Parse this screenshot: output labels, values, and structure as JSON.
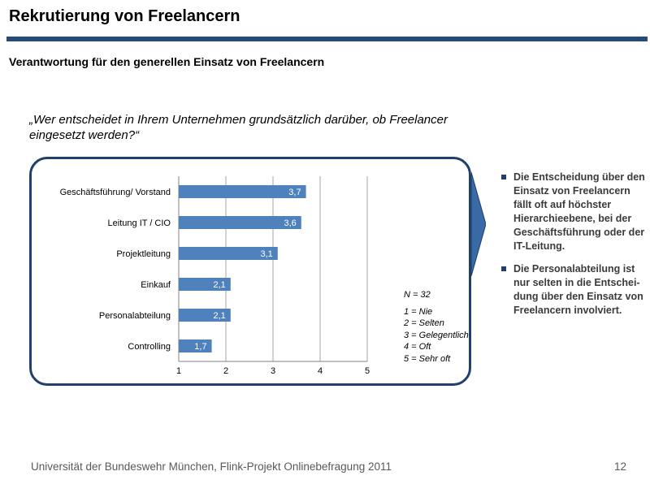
{
  "slide": {
    "title": "Rekrutierung von Freelancern",
    "subtitle": "Verantwortung für den generellen Einsatz von Freelancern",
    "question_line1": "„Wer entscheidet in Ihrem Unternehmen grundsätzlich darüber, ob Freelancer",
    "question_line2": "eingesetzt werden?“",
    "footer": "Universität der Bundeswehr München, Flink-Projekt Onlinebefragung  2011",
    "page_number": "12"
  },
  "bullets": [
    "Die Entscheidung über den Einsatz von Freelancern fällt oft auf höchster Hierarchieebene, bei der Geschäftsführung oder der IT-Leitung.",
    "Die Personalabteilung ist nur selten in die Entschei-dung über den Einsatz von Freelancern involviert."
  ],
  "legend": {
    "n": "N = 32",
    "scale": [
      "1 = Nie",
      "2 = Selten",
      "3 = Gelegentlich",
      "4 = Oft",
      "5 = Sehr oft"
    ]
  },
  "chart_data": {
    "type": "bar",
    "orientation": "horizontal",
    "categories": [
      "Geschäftsführung/ Vorstand",
      "Leitung IT / CIO",
      "Projektleitung",
      "Einkauf",
      "Personalabteilung",
      "Controlling"
    ],
    "values": [
      3.7,
      3.6,
      3.1,
      2.1,
      2.1,
      1.7
    ],
    "value_labels": [
      "3,7",
      "3,6",
      "3,1",
      "2,1",
      "2,1",
      "1,7"
    ],
    "xlim": [
      1,
      5
    ],
    "xticks": [
      "1",
      "2",
      "3",
      "4",
      "5"
    ],
    "grid": true,
    "bar_color": "#4f81bd"
  },
  "colors": {
    "accent": "#244a7c",
    "box_border": "#1f3f6d"
  }
}
